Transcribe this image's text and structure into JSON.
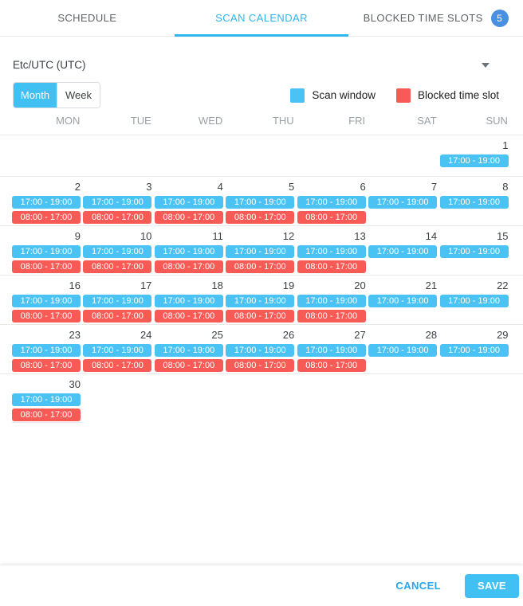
{
  "tabs": [
    {
      "label": "SCHEDULE",
      "active": false
    },
    {
      "label": "SCAN CALENDAR",
      "active": true
    },
    {
      "label": "BLOCKED TIME SLOTS",
      "active": false,
      "badge": "5"
    }
  ],
  "timezone": {
    "value": "Etc/UTC (UTC)"
  },
  "view_toggle": {
    "options": [
      "Month",
      "Week"
    ],
    "selected": "Month"
  },
  "legend": [
    {
      "type": "scan",
      "label": "Scan window",
      "color": "#4ac3f4"
    },
    {
      "type": "blocked",
      "label": "Blocked time slot",
      "color": "#f85b56"
    }
  ],
  "calendar": {
    "day_headers": [
      "MON",
      "TUE",
      "WED",
      "THU",
      "FRI",
      "SAT",
      "SUN"
    ],
    "event_labels": {
      "scan": "17:00 - 19:00",
      "blocked": "08:00 - 17:00"
    },
    "weeks": [
      {
        "cells": [
          {},
          {},
          {},
          {},
          {},
          {},
          {
            "date": "1",
            "events": [
              "scan"
            ]
          }
        ]
      },
      {
        "cells": [
          {
            "date": "2",
            "events": [
              "scan",
              "blocked"
            ]
          },
          {
            "date": "3",
            "events": [
              "scan",
              "blocked"
            ]
          },
          {
            "date": "4",
            "events": [
              "scan",
              "blocked"
            ]
          },
          {
            "date": "5",
            "events": [
              "scan",
              "blocked"
            ]
          },
          {
            "date": "6",
            "events": [
              "scan",
              "blocked"
            ]
          },
          {
            "date": "7",
            "events": [
              "scan"
            ]
          },
          {
            "date": "8",
            "events": [
              "scan"
            ]
          }
        ]
      },
      {
        "cells": [
          {
            "date": "9",
            "events": [
              "scan",
              "blocked"
            ]
          },
          {
            "date": "10",
            "events": [
              "scan",
              "blocked"
            ]
          },
          {
            "date": "11",
            "events": [
              "scan",
              "blocked"
            ]
          },
          {
            "date": "12",
            "events": [
              "scan",
              "blocked"
            ]
          },
          {
            "date": "13",
            "events": [
              "scan",
              "blocked"
            ]
          },
          {
            "date": "14",
            "events": [
              "scan"
            ]
          },
          {
            "date": "15",
            "events": [
              "scan"
            ]
          }
        ]
      },
      {
        "cells": [
          {
            "date": "16",
            "events": [
              "scan",
              "blocked"
            ]
          },
          {
            "date": "17",
            "events": [
              "scan",
              "blocked"
            ]
          },
          {
            "date": "18",
            "events": [
              "scan",
              "blocked"
            ]
          },
          {
            "date": "19",
            "events": [
              "scan",
              "blocked"
            ]
          },
          {
            "date": "20",
            "events": [
              "scan",
              "blocked"
            ]
          },
          {
            "date": "21",
            "events": [
              "scan"
            ]
          },
          {
            "date": "22",
            "events": [
              "scan"
            ]
          }
        ]
      },
      {
        "cells": [
          {
            "date": "23",
            "events": [
              "scan",
              "blocked"
            ]
          },
          {
            "date": "24",
            "events": [
              "scan",
              "blocked"
            ]
          },
          {
            "date": "25",
            "events": [
              "scan",
              "blocked"
            ]
          },
          {
            "date": "26",
            "events": [
              "scan",
              "blocked"
            ]
          },
          {
            "date": "27",
            "events": [
              "scan",
              "blocked"
            ]
          },
          {
            "date": "28",
            "events": [
              "scan"
            ]
          },
          {
            "date": "29",
            "events": [
              "scan"
            ]
          }
        ]
      },
      {
        "cells": [
          {
            "date": "30",
            "events": [
              "scan",
              "blocked"
            ]
          },
          {},
          {},
          {},
          {},
          {},
          {}
        ]
      }
    ]
  },
  "footer": {
    "cancel_label": "CANCEL",
    "save_label": "SAVE"
  },
  "colors": {
    "accent_tab": "#2eb6ef",
    "control_cyan": "#41c1f3",
    "scan_chip": "#4ac3f4",
    "blocked_chip": "#f85b56",
    "badge_blue": "#4a90e2"
  }
}
